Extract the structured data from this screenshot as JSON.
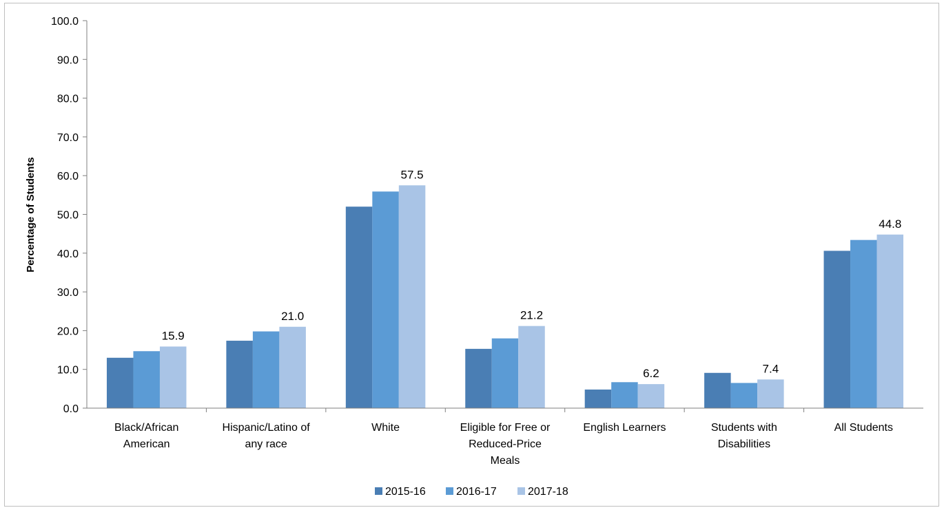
{
  "chart_data": {
    "type": "bar",
    "ylabel": "Percentage of Students",
    "ylim": [
      0,
      100
    ],
    "yticks": [
      "0.0",
      "10.0",
      "20.0",
      "30.0",
      "40.0",
      "50.0",
      "60.0",
      "70.0",
      "80.0",
      "90.0",
      "100.0"
    ],
    "grid": false,
    "legend_position": "bottom",
    "categories": [
      [
        "Black/African",
        "American"
      ],
      [
        "Hispanic/Latino of",
        "any race"
      ],
      [
        "White"
      ],
      [
        "Eligible for Free or",
        "Reduced-Price",
        "Meals"
      ],
      [
        "English Learners"
      ],
      [
        "Students with",
        "Disabilities"
      ],
      [
        "All Students"
      ]
    ],
    "series": [
      {
        "name": "2015-16",
        "color": "#4a7eb4",
        "values": [
          13.0,
          17.4,
          52.0,
          15.3,
          4.8,
          9.1,
          40.6
        ]
      },
      {
        "name": "2016-17",
        "color": "#5b9bd5",
        "values": [
          14.7,
          19.8,
          55.9,
          18.0,
          6.7,
          6.5,
          43.4
        ]
      },
      {
        "name": "2017-18",
        "color": "#a9c4e6",
        "values": [
          15.9,
          21.0,
          57.5,
          21.2,
          6.2,
          7.4,
          44.8
        ]
      }
    ],
    "data_labels": [
      "15.9",
      "21.0",
      "57.5",
      "21.2",
      "6.2",
      "7.4",
      "44.8"
    ]
  }
}
